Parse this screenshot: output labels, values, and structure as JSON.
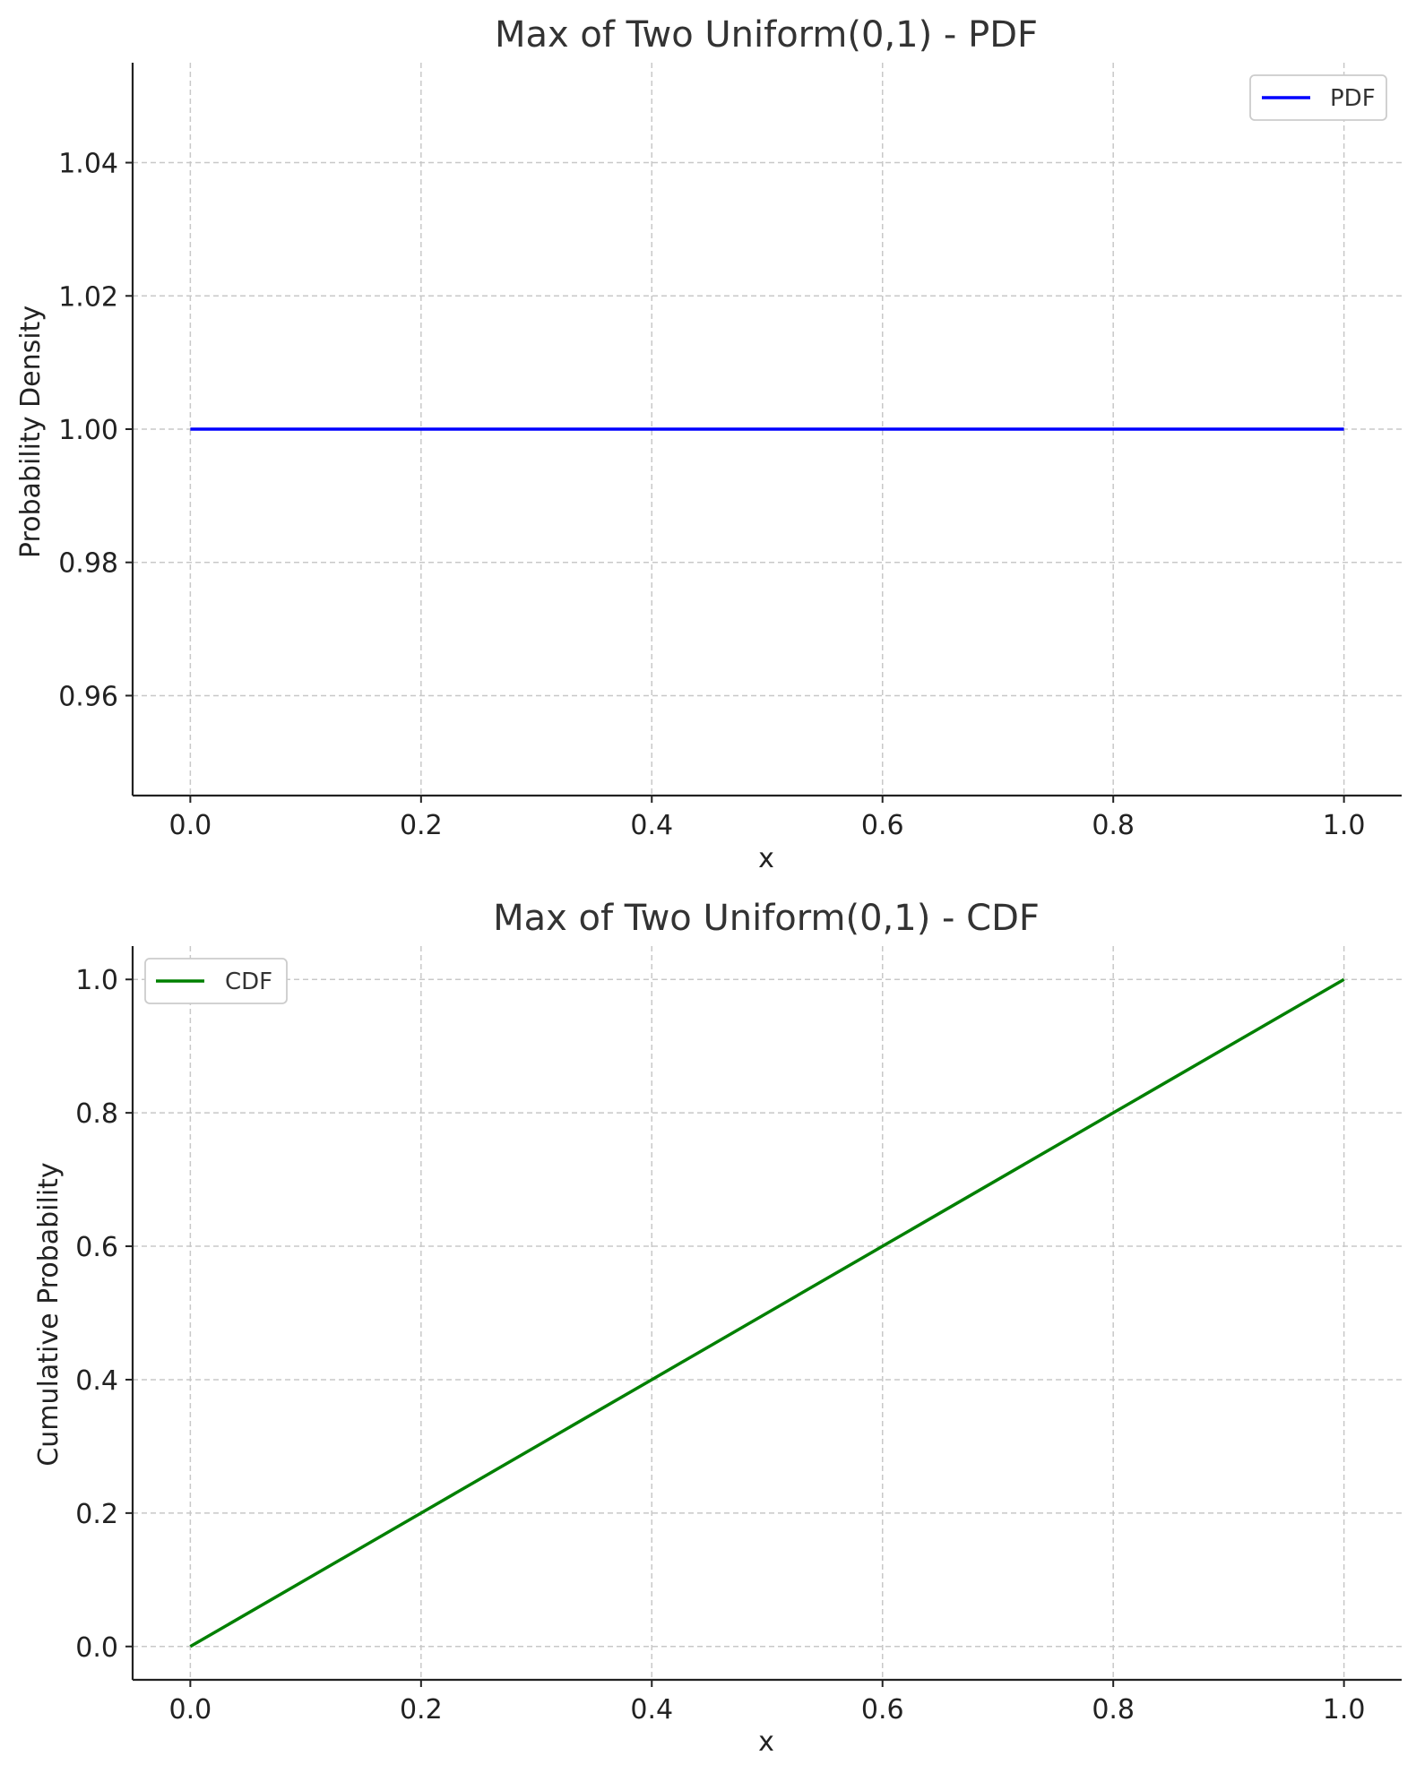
{
  "chart_data": [
    {
      "type": "line",
      "title": "Max of Two Uniform(0,1) - PDF",
      "xlabel": "x",
      "ylabel": "Probability Density",
      "xlim": [
        -0.05,
        1.05
      ],
      "ylim": [
        0.945,
        1.055
      ],
      "xticks": [
        0.0,
        0.2,
        0.4,
        0.6,
        0.8,
        1.0
      ],
      "xtick_labels": [
        "0.0",
        "0.2",
        "0.4",
        "0.6",
        "0.8",
        "1.0"
      ],
      "yticks": [
        0.96,
        0.98,
        1.0,
        1.02,
        1.04
      ],
      "ytick_labels": [
        "0.96",
        "0.98",
        "1.00",
        "1.02",
        "1.04"
      ],
      "grid": true,
      "legend_position": "top-right",
      "series": [
        {
          "name": "PDF",
          "color": "#0000ff",
          "x": [
            0.0,
            1.0
          ],
          "y": [
            1.0,
            1.0
          ]
        }
      ]
    },
    {
      "type": "line",
      "title": "Max of Two Uniform(0,1) - CDF",
      "xlabel": "x",
      "ylabel": "Cumulative Probability",
      "xlim": [
        -0.05,
        1.05
      ],
      "ylim": [
        -0.05,
        1.05
      ],
      "xticks": [
        0.0,
        0.2,
        0.4,
        0.6,
        0.8,
        1.0
      ],
      "xtick_labels": [
        "0.0",
        "0.2",
        "0.4",
        "0.6",
        "0.8",
        "1.0"
      ],
      "yticks": [
        0.0,
        0.2,
        0.4,
        0.6,
        0.8,
        1.0
      ],
      "ytick_labels": [
        "0.0",
        "0.2",
        "0.4",
        "0.6",
        "0.8",
        "1.0"
      ],
      "grid": true,
      "legend_position": "top-left",
      "series": [
        {
          "name": "CDF",
          "color": "#008000",
          "x": [
            0.0,
            0.2,
            0.4,
            0.6,
            0.8,
            1.0
          ],
          "y": [
            0.0,
            0.2,
            0.4,
            0.6,
            0.8,
            1.0
          ]
        }
      ]
    }
  ]
}
